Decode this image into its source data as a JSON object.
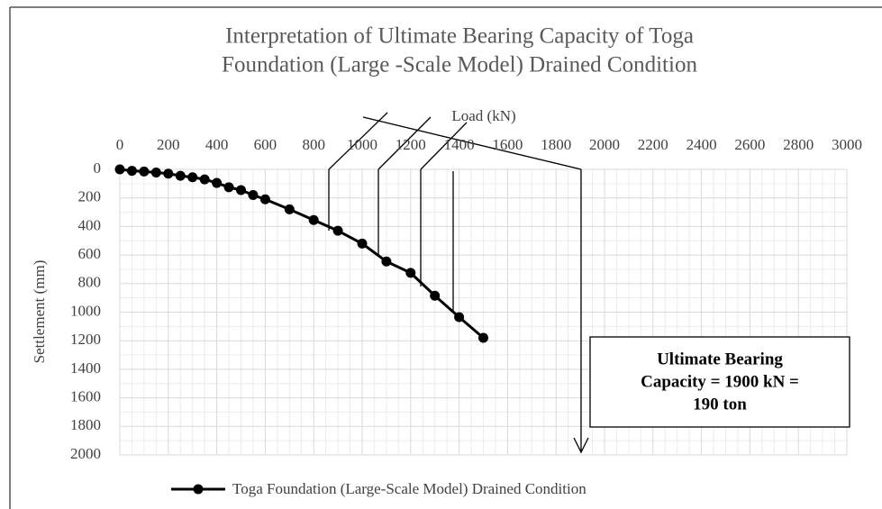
{
  "chart_data": {
    "type": "line",
    "title": [
      "Interpretation of Ultimate Bearing Capacity of Toga",
      "Foundation (Large -Scale Model) Drained Condition"
    ],
    "x_label": "Load (kN)",
    "y_label": "Settlement (mm)",
    "xlim": [
      0,
      3000
    ],
    "xticks": [
      0,
      200,
      400,
      600,
      800,
      1000,
      1200,
      1400,
      1600,
      1800,
      2000,
      2200,
      2400,
      2600,
      2800,
      3000
    ],
    "ylim": [
      0,
      2000
    ],
    "yticks": [
      0,
      200,
      400,
      600,
      800,
      1000,
      1200,
      1400,
      1600,
      1800,
      2000
    ],
    "y_reversed": true,
    "x_axis_position": "top",
    "grid": true,
    "x": [
      0,
      50,
      100,
      150,
      200,
      250,
      300,
      350,
      400,
      450,
      500,
      550,
      600,
      700,
      800,
      900,
      1000,
      1100,
      1200,
      1300,
      1400,
      1500
    ],
    "series": [
      {
        "name": "Toga Foundation (Large-Scale Model) Drained Condition",
        "color": "#000000",
        "values": [
          0,
          10,
          15,
          22,
          30,
          45,
          55,
          70,
          95,
          125,
          145,
          180,
          210,
          280,
          355,
          430,
          520,
          645,
          725,
          885,
          1035,
          1180
        ]
      }
    ],
    "annotation": [
      "Ultimate Bearing",
      "Capacity = 1900 kN =",
      "190 ton"
    ]
  }
}
